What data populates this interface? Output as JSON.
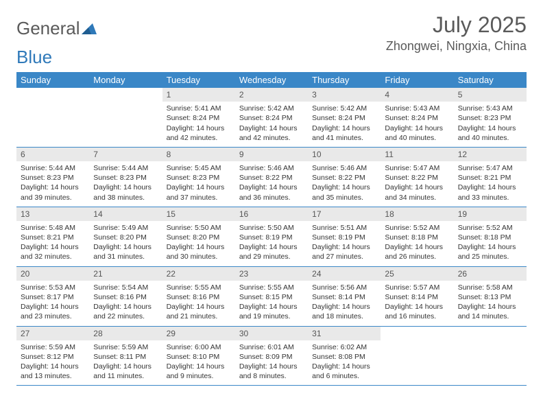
{
  "brand": {
    "part1": "General",
    "part2": "Blue"
  },
  "title": "July 2025",
  "location": "Zhongwei, Ningxia, China",
  "colors": {
    "header_bg": "#3a87c7",
    "header_text": "#ffffff",
    "daynum_bg": "#e9e9e9",
    "text": "#333333",
    "title_text": "#5a5a5a"
  },
  "weekdays": [
    "Sunday",
    "Monday",
    "Tuesday",
    "Wednesday",
    "Thursday",
    "Friday",
    "Saturday"
  ],
  "weeks": [
    [
      null,
      null,
      {
        "n": "1",
        "sr": "Sunrise: 5:41 AM",
        "ss": "Sunset: 8:24 PM",
        "dl": "Daylight: 14 hours and 42 minutes."
      },
      {
        "n": "2",
        "sr": "Sunrise: 5:42 AM",
        "ss": "Sunset: 8:24 PM",
        "dl": "Daylight: 14 hours and 42 minutes."
      },
      {
        "n": "3",
        "sr": "Sunrise: 5:42 AM",
        "ss": "Sunset: 8:24 PM",
        "dl": "Daylight: 14 hours and 41 minutes."
      },
      {
        "n": "4",
        "sr": "Sunrise: 5:43 AM",
        "ss": "Sunset: 8:24 PM",
        "dl": "Daylight: 14 hours and 40 minutes."
      },
      {
        "n": "5",
        "sr": "Sunrise: 5:43 AM",
        "ss": "Sunset: 8:23 PM",
        "dl": "Daylight: 14 hours and 40 minutes."
      }
    ],
    [
      {
        "n": "6",
        "sr": "Sunrise: 5:44 AM",
        "ss": "Sunset: 8:23 PM",
        "dl": "Daylight: 14 hours and 39 minutes."
      },
      {
        "n": "7",
        "sr": "Sunrise: 5:44 AM",
        "ss": "Sunset: 8:23 PM",
        "dl": "Daylight: 14 hours and 38 minutes."
      },
      {
        "n": "8",
        "sr": "Sunrise: 5:45 AM",
        "ss": "Sunset: 8:23 PM",
        "dl": "Daylight: 14 hours and 37 minutes."
      },
      {
        "n": "9",
        "sr": "Sunrise: 5:46 AM",
        "ss": "Sunset: 8:22 PM",
        "dl": "Daylight: 14 hours and 36 minutes."
      },
      {
        "n": "10",
        "sr": "Sunrise: 5:46 AM",
        "ss": "Sunset: 8:22 PM",
        "dl": "Daylight: 14 hours and 35 minutes."
      },
      {
        "n": "11",
        "sr": "Sunrise: 5:47 AM",
        "ss": "Sunset: 8:22 PM",
        "dl": "Daylight: 14 hours and 34 minutes."
      },
      {
        "n": "12",
        "sr": "Sunrise: 5:47 AM",
        "ss": "Sunset: 8:21 PM",
        "dl": "Daylight: 14 hours and 33 minutes."
      }
    ],
    [
      {
        "n": "13",
        "sr": "Sunrise: 5:48 AM",
        "ss": "Sunset: 8:21 PM",
        "dl": "Daylight: 14 hours and 32 minutes."
      },
      {
        "n": "14",
        "sr": "Sunrise: 5:49 AM",
        "ss": "Sunset: 8:20 PM",
        "dl": "Daylight: 14 hours and 31 minutes."
      },
      {
        "n": "15",
        "sr": "Sunrise: 5:50 AM",
        "ss": "Sunset: 8:20 PM",
        "dl": "Daylight: 14 hours and 30 minutes."
      },
      {
        "n": "16",
        "sr": "Sunrise: 5:50 AM",
        "ss": "Sunset: 8:19 PM",
        "dl": "Daylight: 14 hours and 29 minutes."
      },
      {
        "n": "17",
        "sr": "Sunrise: 5:51 AM",
        "ss": "Sunset: 8:19 PM",
        "dl": "Daylight: 14 hours and 27 minutes."
      },
      {
        "n": "18",
        "sr": "Sunrise: 5:52 AM",
        "ss": "Sunset: 8:18 PM",
        "dl": "Daylight: 14 hours and 26 minutes."
      },
      {
        "n": "19",
        "sr": "Sunrise: 5:52 AM",
        "ss": "Sunset: 8:18 PM",
        "dl": "Daylight: 14 hours and 25 minutes."
      }
    ],
    [
      {
        "n": "20",
        "sr": "Sunrise: 5:53 AM",
        "ss": "Sunset: 8:17 PM",
        "dl": "Daylight: 14 hours and 23 minutes."
      },
      {
        "n": "21",
        "sr": "Sunrise: 5:54 AM",
        "ss": "Sunset: 8:16 PM",
        "dl": "Daylight: 14 hours and 22 minutes."
      },
      {
        "n": "22",
        "sr": "Sunrise: 5:55 AM",
        "ss": "Sunset: 8:16 PM",
        "dl": "Daylight: 14 hours and 21 minutes."
      },
      {
        "n": "23",
        "sr": "Sunrise: 5:55 AM",
        "ss": "Sunset: 8:15 PM",
        "dl": "Daylight: 14 hours and 19 minutes."
      },
      {
        "n": "24",
        "sr": "Sunrise: 5:56 AM",
        "ss": "Sunset: 8:14 PM",
        "dl": "Daylight: 14 hours and 18 minutes."
      },
      {
        "n": "25",
        "sr": "Sunrise: 5:57 AM",
        "ss": "Sunset: 8:14 PM",
        "dl": "Daylight: 14 hours and 16 minutes."
      },
      {
        "n": "26",
        "sr": "Sunrise: 5:58 AM",
        "ss": "Sunset: 8:13 PM",
        "dl": "Daylight: 14 hours and 14 minutes."
      }
    ],
    [
      {
        "n": "27",
        "sr": "Sunrise: 5:59 AM",
        "ss": "Sunset: 8:12 PM",
        "dl": "Daylight: 14 hours and 13 minutes."
      },
      {
        "n": "28",
        "sr": "Sunrise: 5:59 AM",
        "ss": "Sunset: 8:11 PM",
        "dl": "Daylight: 14 hours and 11 minutes."
      },
      {
        "n": "29",
        "sr": "Sunrise: 6:00 AM",
        "ss": "Sunset: 8:10 PM",
        "dl": "Daylight: 14 hours and 9 minutes."
      },
      {
        "n": "30",
        "sr": "Sunrise: 6:01 AM",
        "ss": "Sunset: 8:09 PM",
        "dl": "Daylight: 14 hours and 8 minutes."
      },
      {
        "n": "31",
        "sr": "Sunrise: 6:02 AM",
        "ss": "Sunset: 8:08 PM",
        "dl": "Daylight: 14 hours and 6 minutes."
      },
      null,
      null
    ]
  ]
}
